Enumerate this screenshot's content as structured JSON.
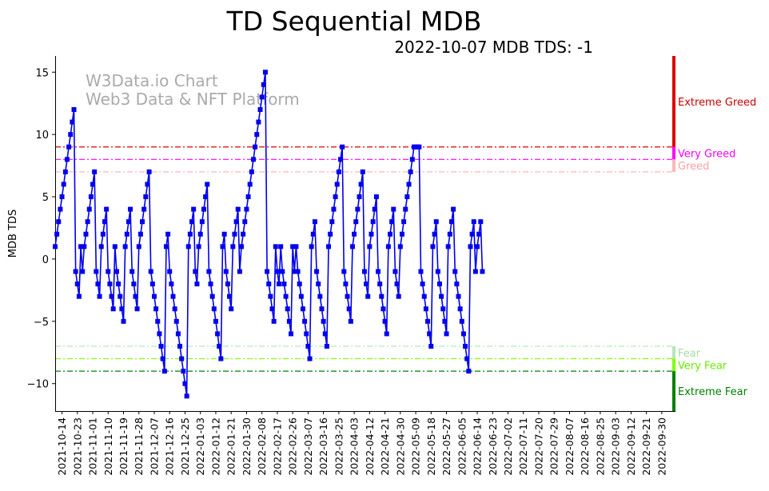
{
  "chart_data": {
    "type": "line",
    "title": "TD Sequential MDB",
    "subtitle": "2022-10-07 MDB TDS: -1",
    "ylabel": "MDB TDS",
    "xlabel": "",
    "watermark": [
      "W3Data.io Chart",
      "Web3 Data & NFT Platform"
    ],
    "ylim": [
      -12.2,
      16.3
    ],
    "xlim": [
      "2021-10-10",
      "2022-10-08"
    ],
    "y_ticks": [
      -10,
      -5,
      0,
      5,
      10,
      15
    ],
    "x_ticks": [
      "2021-10-14",
      "2021-10-23",
      "2021-11-01",
      "2021-11-10",
      "2021-11-19",
      "2021-11-28",
      "2021-12-07",
      "2021-12-16",
      "2021-12-25",
      "2022-01-03",
      "2022-01-12",
      "2022-01-21",
      "2022-01-30",
      "2022-02-08",
      "2022-02-17",
      "2022-02-26",
      "2022-03-07",
      "2022-03-16",
      "2022-03-25",
      "2022-04-03",
      "2022-04-12",
      "2022-04-21",
      "2022-04-30",
      "2022-05-09",
      "2022-05-18",
      "2022-05-27",
      "2022-06-05",
      "2022-06-14",
      "2022-06-23",
      "2022-07-02",
      "2022-07-11",
      "2022-07-20",
      "2022-07-29",
      "2022-08-07",
      "2022-08-16",
      "2022-08-25",
      "2022-09-03",
      "2022-09-12",
      "2022-09-21",
      "2022-09-30"
    ],
    "grid": false,
    "series": [
      {
        "color": "#0000ee",
        "marker": "square",
        "start_date": "2021-10-10",
        "values": [
          1,
          2,
          3,
          4,
          5,
          6,
          7,
          8,
          9,
          10,
          11,
          12,
          -1,
          -2,
          -3,
          1,
          -1,
          1,
          2,
          3,
          4,
          5,
          6,
          7,
          -1,
          -2,
          -3,
          1,
          2,
          3,
          4,
          -1,
          -2,
          -3,
          -4,
          1,
          -1,
          -2,
          -3,
          -4,
          -5,
          1,
          2,
          3,
          4,
          -1,
          -2,
          -3,
          -4,
          1,
          2,
          3,
          4,
          5,
          6,
          7,
          -1,
          -2,
          -3,
          -4,
          -5,
          -6,
          -7,
          -8,
          -9,
          1,
          2,
          -1,
          -2,
          -3,
          -4,
          -5,
          -6,
          -7,
          -8,
          -9,
          -10,
          -11,
          1,
          2,
          3,
          4,
          -1,
          -2,
          1,
          2,
          3,
          4,
          5,
          6,
          -1,
          -2,
          -3,
          -4,
          -5,
          -6,
          -7,
          -8,
          1,
          2,
          -1,
          -2,
          -3,
          -4,
          1,
          2,
          3,
          4,
          -1,
          1,
          2,
          3,
          4,
          5,
          6,
          7,
          8,
          9,
          10,
          11,
          12,
          13,
          14,
          15,
          -1,
          -2,
          -3,
          -4,
          -5,
          1,
          -1,
          -2,
          1,
          -1,
          -2,
          -3,
          -4,
          -5,
          -6,
          1,
          -1,
          1,
          -1,
          -2,
          -3,
          -4,
          -5,
          -6,
          -7,
          -8,
          1,
          2,
          3,
          -1,
          -2,
          -3,
          -4,
          -5,
          -6,
          -7,
          1,
          2,
          3,
          4,
          5,
          6,
          7,
          8,
          9,
          -1,
          -2,
          -3,
          -4,
          -5,
          1,
          2,
          3,
          4,
          5,
          6,
          7,
          -1,
          -2,
          -3,
          1,
          2,
          3,
          4,
          5,
          -1,
          -2,
          -3,
          -4,
          -5,
          -6,
          1,
          2,
          3,
          4,
          -1,
          -2,
          -3,
          1,
          2,
          3,
          4,
          5,
          6,
          7,
          8,
          9,
          9,
          9,
          9,
          -1,
          -2,
          -3,
          -4,
          -5,
          -6,
          -7,
          1,
          2,
          3,
          -1,
          -2,
          -3,
          -4,
          -5,
          -6,
          1,
          2,
          3,
          4,
          -1,
          -2,
          -3,
          -4,
          -5,
          -6,
          -7,
          -8,
          -9,
          1,
          2,
          3,
          -1,
          1,
          2,
          3,
          -1
        ]
      }
    ],
    "thresholds": [
      {
        "label": "Extreme Greed",
        "value": 9,
        "color": "#dd0000",
        "text_color": "#cc0000",
        "band": [
          9,
          16.3
        ]
      },
      {
        "label": "Very Greed",
        "value": 8,
        "color": "#ff00ff",
        "text_color": "#ff00ff",
        "band": [
          8,
          9
        ]
      },
      {
        "label": "Greed",
        "value": 7,
        "color": "#ffb6b6",
        "text_color": "#ffa0a0",
        "band": [
          7,
          8
        ]
      },
      {
        "label": "Fear",
        "value": -7,
        "color": "#b8e6b8",
        "text_color": "#a8d8a8",
        "band": [
          -8,
          -7
        ]
      },
      {
        "label": "Very Fear",
        "value": -8,
        "color": "#7fff00",
        "text_color": "#66ee00",
        "band": [
          -9,
          -8
        ]
      },
      {
        "label": "Extreme Fear",
        "value": -9,
        "color": "#008000",
        "text_color": "#008000",
        "band": [
          -12.2,
          -9
        ]
      }
    ]
  }
}
